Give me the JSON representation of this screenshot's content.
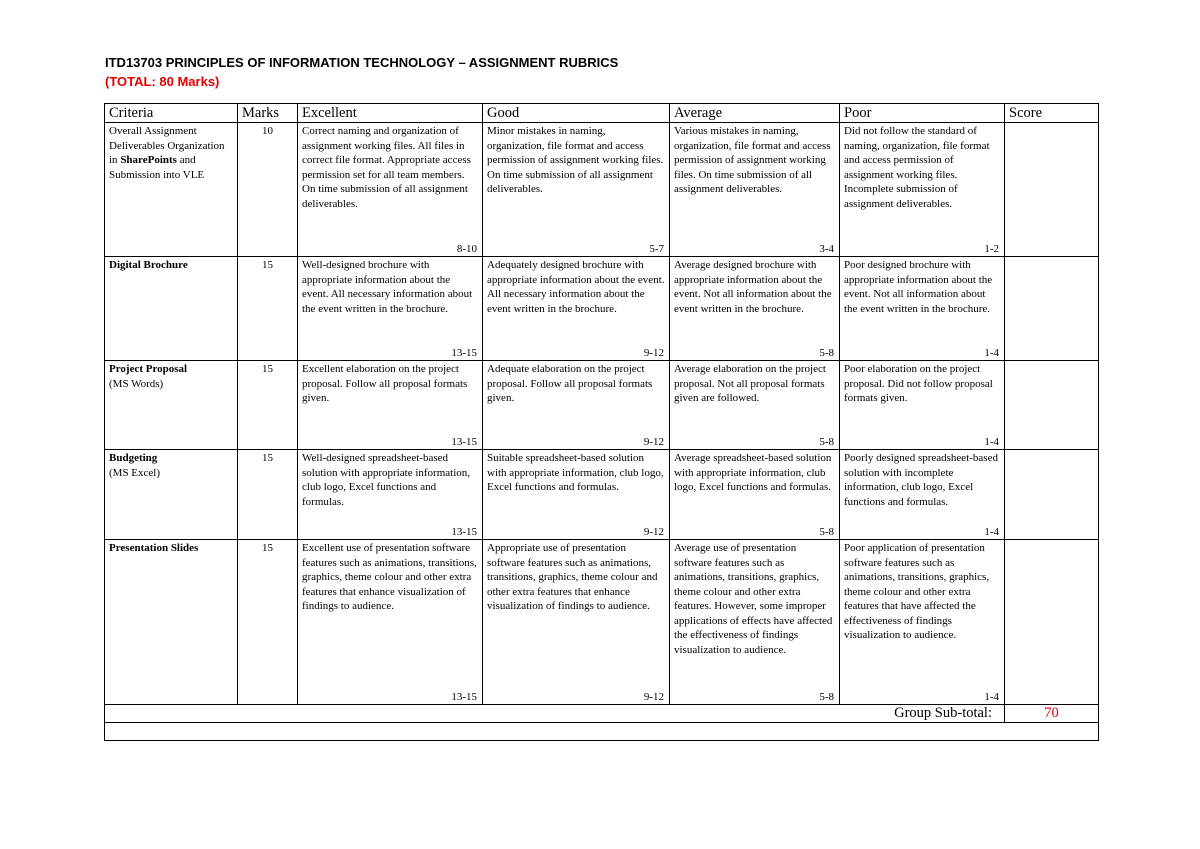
{
  "title": "ITD13703 PRINCIPLES OF INFORMATION TECHNOLOGY – ASSIGNMENT RUBRICS",
  "total": "(TOTAL: 80 Marks)",
  "headers": [
    "Criteria",
    "Marks",
    "Excellent",
    "Good",
    "Average",
    "Poor",
    "Score"
  ],
  "rows": [
    {
      "criteria_pre": "Overall Assignment Deliverables Organization in ",
      "criteria_bold": "SharePoints",
      "criteria_post": " and Submission into VLE",
      "marks": "10",
      "excellent": "Correct naming and organization of assignment working files. All files in correct file format. Appropriate access permission set for all team members. On time submission of all assignment deliverables.",
      "excellent_range": "8-10",
      "good": "Minor mistakes in naming, organization, file format and access permission of assignment working files. On time submission of all assignment deliverables.",
      "good_range": "5-7",
      "average": "Various mistakes in naming, organization, file format and access permission of assignment working files. On time submission of all assignment deliverables.",
      "average_range": "3-4",
      "poor": "Did not follow the standard of naming, organization, file format and access permission of assignment working files. Incomplete submission of assignment deliverables.",
      "poor_range": "1-2",
      "score": ""
    },
    {
      "criteria_bold": "Digital Brochure",
      "criteria_sub": "",
      "marks": "15",
      "excellent": "Well-designed brochure with appropriate information about the event. All necessary information about the event written in the brochure.",
      "excellent_range": "13-15",
      "good": "Adequately designed brochure with appropriate information about the event. All necessary information about the event written in the brochure.",
      "good_range": "9-12",
      "average": "Average designed brochure with appropriate information about the event. Not all information about the event written in the brochure.",
      "average_range": "5-8",
      "poor": "Poor designed brochure with appropriate information about the event. Not all information about the event written in the brochure.",
      "poor_range": "1-4",
      "score": ""
    },
    {
      "criteria_bold": "Project Proposal",
      "criteria_sub": "(MS Words)",
      "marks": "15",
      "excellent": "Excellent elaboration on the project proposal. Follow all proposal formats given.",
      "excellent_range": "13-15",
      "good": "Adequate elaboration on the project proposal. Follow all proposal formats given.",
      "good_range": "9-12",
      "average": "Average elaboration on the project proposal. Not all proposal formats given are followed.",
      "average_range": "5-8",
      "poor": "Poor elaboration on the project proposal. Did not follow proposal formats given.",
      "poor_range": "1-4",
      "score": ""
    },
    {
      "criteria_bold": "Budgeting",
      "criteria_sub": "(MS Excel)",
      "marks": "15",
      "excellent": "Well-designed spreadsheet-based solution with appropriate information, club logo, Excel functions and formulas.",
      "excellent_range": "13-15",
      "good": "Suitable spreadsheet-based solution with appropriate information, club logo, Excel functions and formulas.",
      "good_range": "9-12",
      "average": "Average spreadsheet-based solution with appropriate information, club logo, Excel functions and formulas.",
      "average_range": "5-8",
      "poor": "Poorly designed spreadsheet-based solution with incomplete information, club logo, Excel functions and formulas.",
      "poor_range": "1-4",
      "score": ""
    },
    {
      "criteria_bold": "Presentation Slides",
      "criteria_sub": "",
      "marks": "15",
      "excellent": "Excellent use of presentation software features such as animations, transitions, graphics, theme colour and other extra features that enhance visualization of findings to audience.",
      "excellent_range": "13-15",
      "good": "Appropriate use of presentation software features such as animations, transitions, graphics, theme colour and other extra features that enhance visualization of findings to audience.",
      "good_range": "9-12",
      "average": "Average use of presentation software features such as animations, transitions, graphics, theme colour and other extra features. However, some improper applications of effects have affected the effectiveness of findings visualization to audience.",
      "average_range": "5-8",
      "poor": "Poor application of presentation software features such as animations, transitions, graphics, theme colour and other extra features that have affected the effectiveness of findings visualization to audience.",
      "poor_range": "1-4",
      "score": ""
    }
  ],
  "subtotal": {
    "label": "Group Sub-total:",
    "value": "70"
  }
}
